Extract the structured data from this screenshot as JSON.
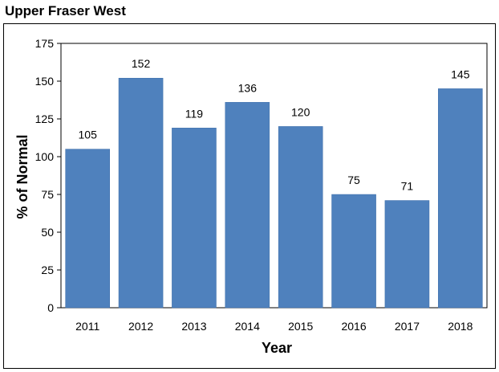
{
  "page": {
    "title": "Upper Fraser West"
  },
  "colors": {
    "bar": "#4F81BD",
    "bar_stroke": "#3F6FAA"
  },
  "chart_data": {
    "type": "bar",
    "title": "Upper Fraser West",
    "xlabel": "Year",
    "ylabel": "% of Normal",
    "categories": [
      "2011",
      "2012",
      "2013",
      "2014",
      "2015",
      "2016",
      "2017",
      "2018"
    ],
    "values": [
      105,
      152,
      119,
      136,
      120,
      75,
      71,
      145
    ],
    "data_labels": [
      "105",
      "152",
      "119",
      "136",
      "120",
      "75",
      "71",
      "145"
    ],
    "ylim": [
      0,
      175
    ],
    "yticks": [
      0,
      25,
      50,
      75,
      100,
      125,
      150,
      175
    ],
    "grid": false,
    "legend": "none"
  }
}
